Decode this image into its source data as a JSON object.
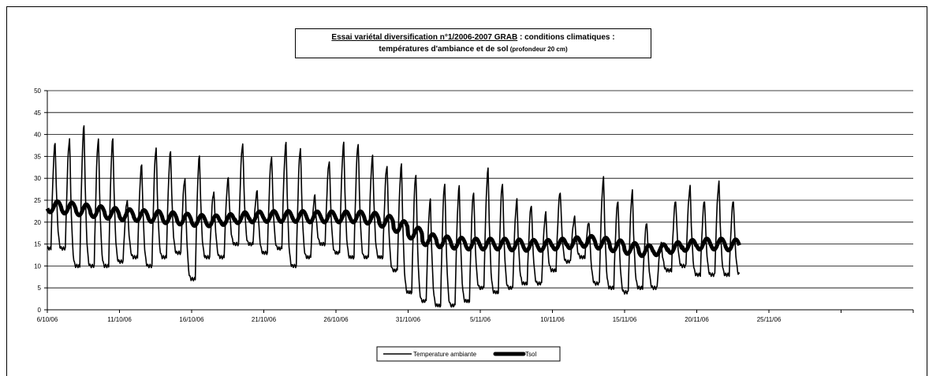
{
  "chart_data": {
    "type": "line",
    "title": {
      "part1": "Essai variétal diversification n°1/2006-2007  GRAB",
      "part2": " : conditions climatiques :",
      "line2_main": "températures d'ambiance et de sol",
      "line2_small": " (profondeur 20 cm)"
    },
    "xlabel": "",
    "ylabel": "",
    "x_ticks": [
      "6/10/06",
      "11/10/06",
      "16/10/06",
      "21/10/06",
      "26/10/06",
      "31/10/06",
      "5/11/06",
      "10/11/06",
      "15/11/06",
      "20/11/06",
      "25/11/06"
    ],
    "x_range_days": [
      0,
      60
    ],
    "ylim": [
      0,
      50
    ],
    "y_ticks": [
      0,
      5,
      10,
      15,
      20,
      25,
      30,
      35,
      40,
      45,
      50
    ],
    "grid": "horizontal",
    "legend_position": "bottom-center",
    "series": [
      {
        "name": "Temperature ambiante",
        "color": "#000000",
        "daily_max": [
          38,
          39,
          42,
          39,
          39,
          25,
          33,
          37,
          36,
          30,
          35,
          27,
          30,
          38,
          27,
          35,
          38,
          37,
          26,
          34,
          38,
          38,
          35,
          33,
          33,
          31,
          25,
          29,
          28,
          27,
          32,
          29,
          25,
          24,
          22,
          27,
          21,
          20,
          30,
          25,
          27,
          20,
          15,
          25,
          28,
          25,
          29,
          25
        ],
        "daily_min": [
          14,
          14,
          10,
          10,
          10,
          11,
          12,
          10,
          12,
          13,
          7,
          12,
          12,
          15,
          15,
          13,
          14,
          10,
          12,
          15,
          13,
          12,
          12,
          12,
          9,
          4,
          2,
          1,
          1,
          2,
          5,
          4,
          5,
          6,
          6,
          9,
          11,
          12,
          6,
          5,
          4,
          5,
          5,
          9,
          10,
          8,
          8,
          8
        ]
      },
      {
        "name": "Tsol",
        "color": "#000000",
        "daily_mean": [
          23.5,
          23.2,
          22.8,
          22.4,
          22.0,
          21.7,
          21.5,
          21.3,
          21.0,
          20.7,
          20.4,
          20.3,
          20.6,
          21.0,
          21.2,
          21.3,
          21.3,
          21.3,
          21.2,
          21.2,
          21.2,
          21.2,
          20.9,
          20.2,
          19.0,
          17.5,
          16.0,
          15.5,
          15.2,
          15.0,
          15.0,
          15.0,
          14.8,
          14.7,
          14.7,
          15.0,
          15.3,
          15.6,
          15.2,
          14.6,
          14.0,
          13.5,
          13.7,
          14.2,
          14.7,
          15.0,
          15.0,
          14.8
        ],
        "daily_amplitude": 2.5
      }
    ]
  }
}
